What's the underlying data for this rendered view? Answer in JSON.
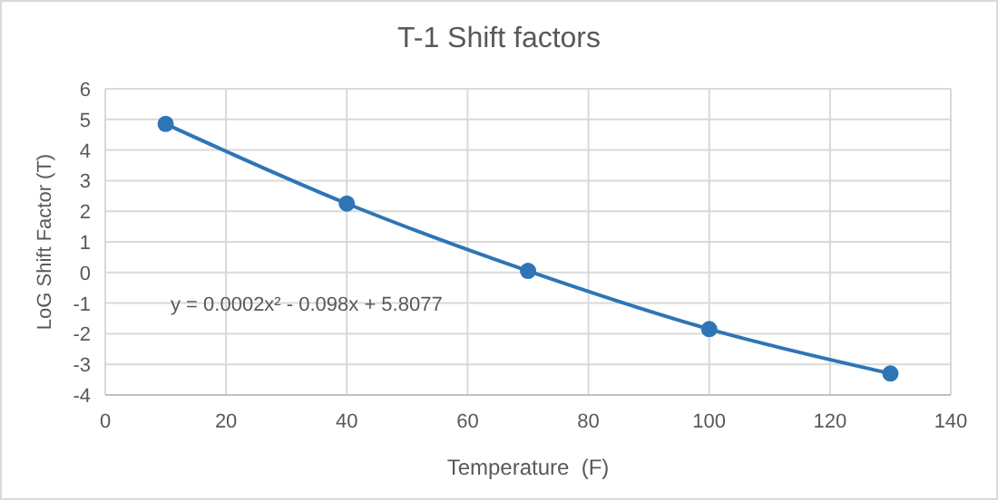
{
  "chart_data": {
    "type": "line",
    "title": "T-1 Shift factors",
    "xlabel": "Temperature  (F)",
    "ylabel": "LoG Shift Factor (T)",
    "x": [
      10,
      40,
      70,
      100,
      130
    ],
    "series": [
      {
        "color": "#2e75b6",
        "values": [
          4.85,
          2.25,
          0.05,
          -1.85,
          -3.3
        ]
      }
    ],
    "xlim": [
      0,
      140
    ],
    "xticks": [
      0,
      20,
      40,
      60,
      80,
      100,
      120,
      140
    ],
    "ylim": [
      -4,
      6
    ],
    "yticks": [
      -4,
      -3,
      -2,
      -1,
      0,
      1,
      2,
      3,
      4,
      5,
      6
    ],
    "grid": true,
    "marker": "circle",
    "line_style": "solid",
    "annotations": [
      "y = 0.0002x² - 0.098x + 5.8077"
    ]
  }
}
